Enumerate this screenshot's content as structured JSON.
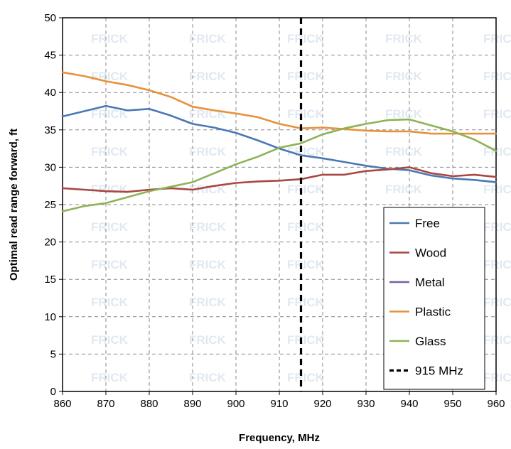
{
  "chart_data": {
    "type": "line",
    "xlabel": "Frequency, MHz",
    "ylabel": "Optimal read range forward, ft",
    "xlim": [
      860,
      960
    ],
    "ylim": [
      0,
      50
    ],
    "xticks": [
      860,
      870,
      880,
      890,
      900,
      910,
      920,
      930,
      940,
      950,
      960
    ],
    "yticks": [
      0,
      5,
      10,
      15,
      20,
      25,
      30,
      35,
      40,
      45,
      50
    ],
    "grid": "dashed",
    "legend_position": "bottom-right",
    "watermark": "FRICK",
    "series": [
      {
        "name": "Free",
        "color": "#4a78b5",
        "x": [
          860,
          865,
          870,
          875,
          880,
          885,
          890,
          895,
          900,
          905,
          910,
          915,
          920,
          925,
          930,
          935,
          940,
          945,
          950,
          955,
          960
        ],
        "y": [
          36.8,
          37.5,
          38.2,
          37.6,
          37.8,
          36.9,
          35.8,
          35.3,
          34.6,
          33.6,
          32.5,
          31.6,
          31.2,
          30.7,
          30.2,
          29.8,
          29.6,
          28.9,
          28.5,
          28.3,
          28.0
        ]
      },
      {
        "name": "Wood",
        "color": "#a84744",
        "x": [
          860,
          865,
          870,
          875,
          880,
          885,
          890,
          895,
          900,
          905,
          910,
          915,
          920,
          925,
          930,
          935,
          940,
          945,
          950,
          955,
          960
        ],
        "y": [
          27.2,
          27.0,
          26.8,
          26.7,
          27.0,
          27.2,
          27.0,
          27.5,
          27.9,
          28.1,
          28.2,
          28.4,
          29.0,
          29.0,
          29.5,
          29.7,
          30.0,
          29.2,
          28.8,
          29.0,
          28.7
        ]
      },
      {
        "name": "Metal",
        "color": "#7b5ea7",
        "x": [],
        "y": []
      },
      {
        "name": "Plastic",
        "color": "#e8913b",
        "x": [
          860,
          865,
          870,
          875,
          880,
          885,
          890,
          895,
          900,
          905,
          910,
          915,
          920,
          925,
          930,
          935,
          940,
          945,
          950,
          955,
          960
        ],
        "y": [
          42.7,
          42.2,
          41.5,
          41.0,
          40.3,
          39.4,
          38.1,
          37.6,
          37.2,
          36.7,
          35.8,
          35.2,
          35.3,
          35.1,
          34.9,
          34.8,
          34.8,
          34.5,
          34.5,
          34.5,
          34.5
        ]
      },
      {
        "name": "Glass",
        "color": "#8db354",
        "x": [
          860,
          865,
          870,
          875,
          880,
          885,
          890,
          895,
          900,
          905,
          910,
          915,
          920,
          925,
          930,
          935,
          940,
          945,
          950,
          955,
          960
        ],
        "y": [
          24.1,
          24.8,
          25.2,
          26.0,
          26.8,
          27.4,
          28.0,
          29.2,
          30.4,
          31.4,
          32.6,
          33.2,
          34.4,
          35.2,
          35.8,
          36.3,
          36.4,
          35.6,
          34.8,
          33.7,
          32.2
        ]
      }
    ],
    "reference_line": {
      "name": "915 MHz",
      "x": 915,
      "color": "#000000",
      "style": "dashed"
    }
  }
}
